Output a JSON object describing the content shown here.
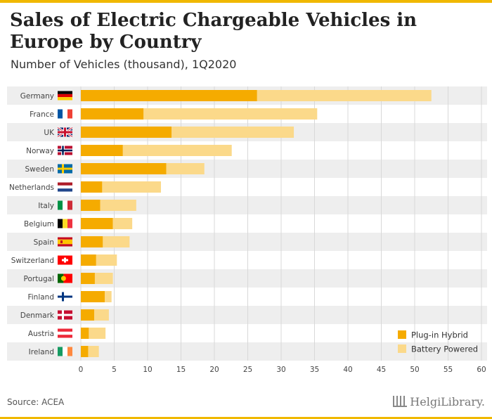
{
  "header": {
    "title": "Sales of Electric Chargeable Vehicles in Europe by Country",
    "subtitle": "Number of Vehicles (thousand), 1Q2020"
  },
  "footer": {
    "source": "Source: ACEA",
    "brand": "HelgiLibrary."
  },
  "colors": {
    "accent": "#f0b800",
    "plug_in_hybrid": "#f5ab00",
    "battery_powered": "#fbd98a",
    "row_stripe": "#eeeeee"
  },
  "chart_data": {
    "type": "bar",
    "orientation": "horizontal",
    "stacked": true,
    "categories": [
      "Germany",
      "France",
      "UK",
      "Norway",
      "Sweden",
      "Netherlands",
      "Italy",
      "Belgium",
      "Spain",
      "Switzerland",
      "Portugal",
      "Finland",
      "Denmark",
      "Austria",
      "Ireland"
    ],
    "flags": [
      "de",
      "fr",
      "uk",
      "no",
      "se",
      "nl",
      "it",
      "be",
      "es",
      "ch",
      "pt",
      "fi",
      "dk",
      "at",
      "ie"
    ],
    "series": [
      {
        "name": "Plug-in Hybrid",
        "values": [
          26.4,
          9.4,
          13.6,
          6.3,
          12.8,
          3.2,
          2.9,
          4.8,
          3.3,
          2.3,
          2.1,
          3.6,
          2.0,
          1.2,
          1.1
        ]
      },
      {
        "name": "Battery Powered",
        "values": [
          26.1,
          26.0,
          18.3,
          16.3,
          5.7,
          8.8,
          5.4,
          2.9,
          4.0,
          3.1,
          2.7,
          1.0,
          2.2,
          2.5,
          1.6
        ]
      }
    ],
    "xlim": [
      0,
      60
    ],
    "xticks": [
      0,
      5,
      10,
      15,
      20,
      25,
      30,
      35,
      40,
      45,
      50,
      55,
      60
    ],
    "grid": true,
    "legend_position": "bottom-right"
  }
}
